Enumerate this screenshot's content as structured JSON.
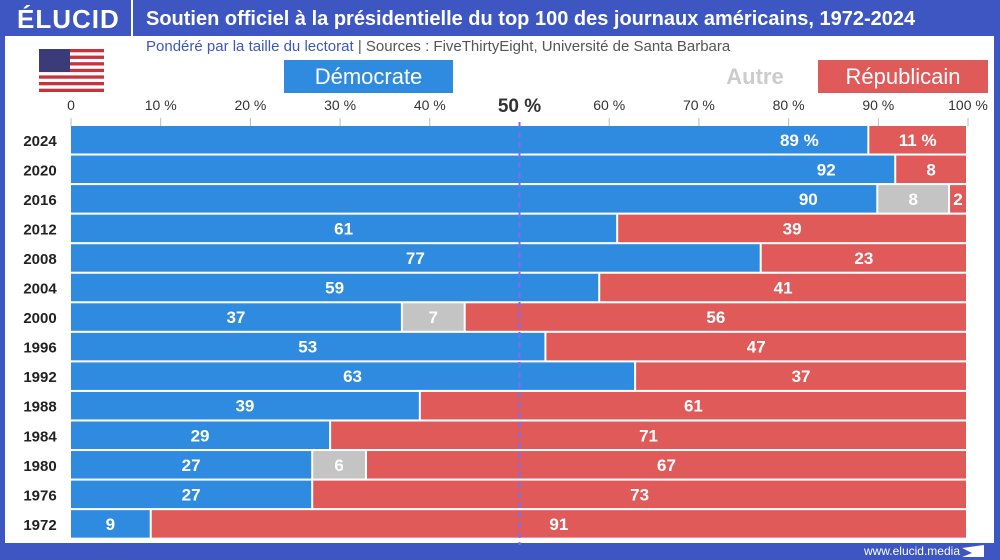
{
  "header": {
    "logo": "ÉLUCID",
    "title": "Soutien officiel à la présidentielle du top 100 des journaux américains, 1972-2024",
    "subtitle_note": "Pondéré par la taille du lectorat",
    "subtitle_sep": "|",
    "subtitle_sources": "Sources : FiveThirtyEight, Université de Santa Barbara"
  },
  "footer": {
    "url": "www.elucid.media"
  },
  "colors": {
    "democrat": "#2f8be0",
    "other": "#c4c4c4",
    "republican": "#e05a5a",
    "frame": "#3d56c2",
    "midline": "#7b6cf0"
  },
  "chart_data": {
    "type": "bar",
    "orientation": "horizontal",
    "stacked": true,
    "xlim": [
      0,
      100
    ],
    "xticks": [
      "0",
      "10 %",
      "20 %",
      "30 %",
      "40 %",
      "50 %",
      "60 %",
      "70 %",
      "80 %",
      "90 %",
      "100 %"
    ],
    "reference_line": {
      "x": 50,
      "label": "50 %"
    },
    "categories": [
      "2024",
      "2020",
      "2016",
      "2012",
      "2008",
      "2004",
      "2000",
      "1996",
      "1992",
      "1988",
      "1984",
      "1980",
      "1976",
      "1972"
    ],
    "series": [
      {
        "name": "Démocrate",
        "color": "#2f8be0",
        "values": [
          89,
          92,
          90,
          61,
          77,
          59,
          37,
          53,
          63,
          39,
          29,
          27,
          27,
          9
        ]
      },
      {
        "name": "Autre",
        "color": "#c4c4c4",
        "values": [
          0,
          0,
          8,
          0,
          0,
          0,
          7,
          0,
          0,
          0,
          0,
          6,
          0,
          0
        ]
      },
      {
        "name": "Républicain",
        "color": "#e05a5a",
        "values": [
          11,
          8,
          2,
          39,
          23,
          41,
          56,
          47,
          37,
          61,
          71,
          67,
          73,
          91
        ]
      }
    ],
    "first_row_labels": [
      "89 %",
      "",
      "11 %"
    ],
    "legend": "top"
  }
}
